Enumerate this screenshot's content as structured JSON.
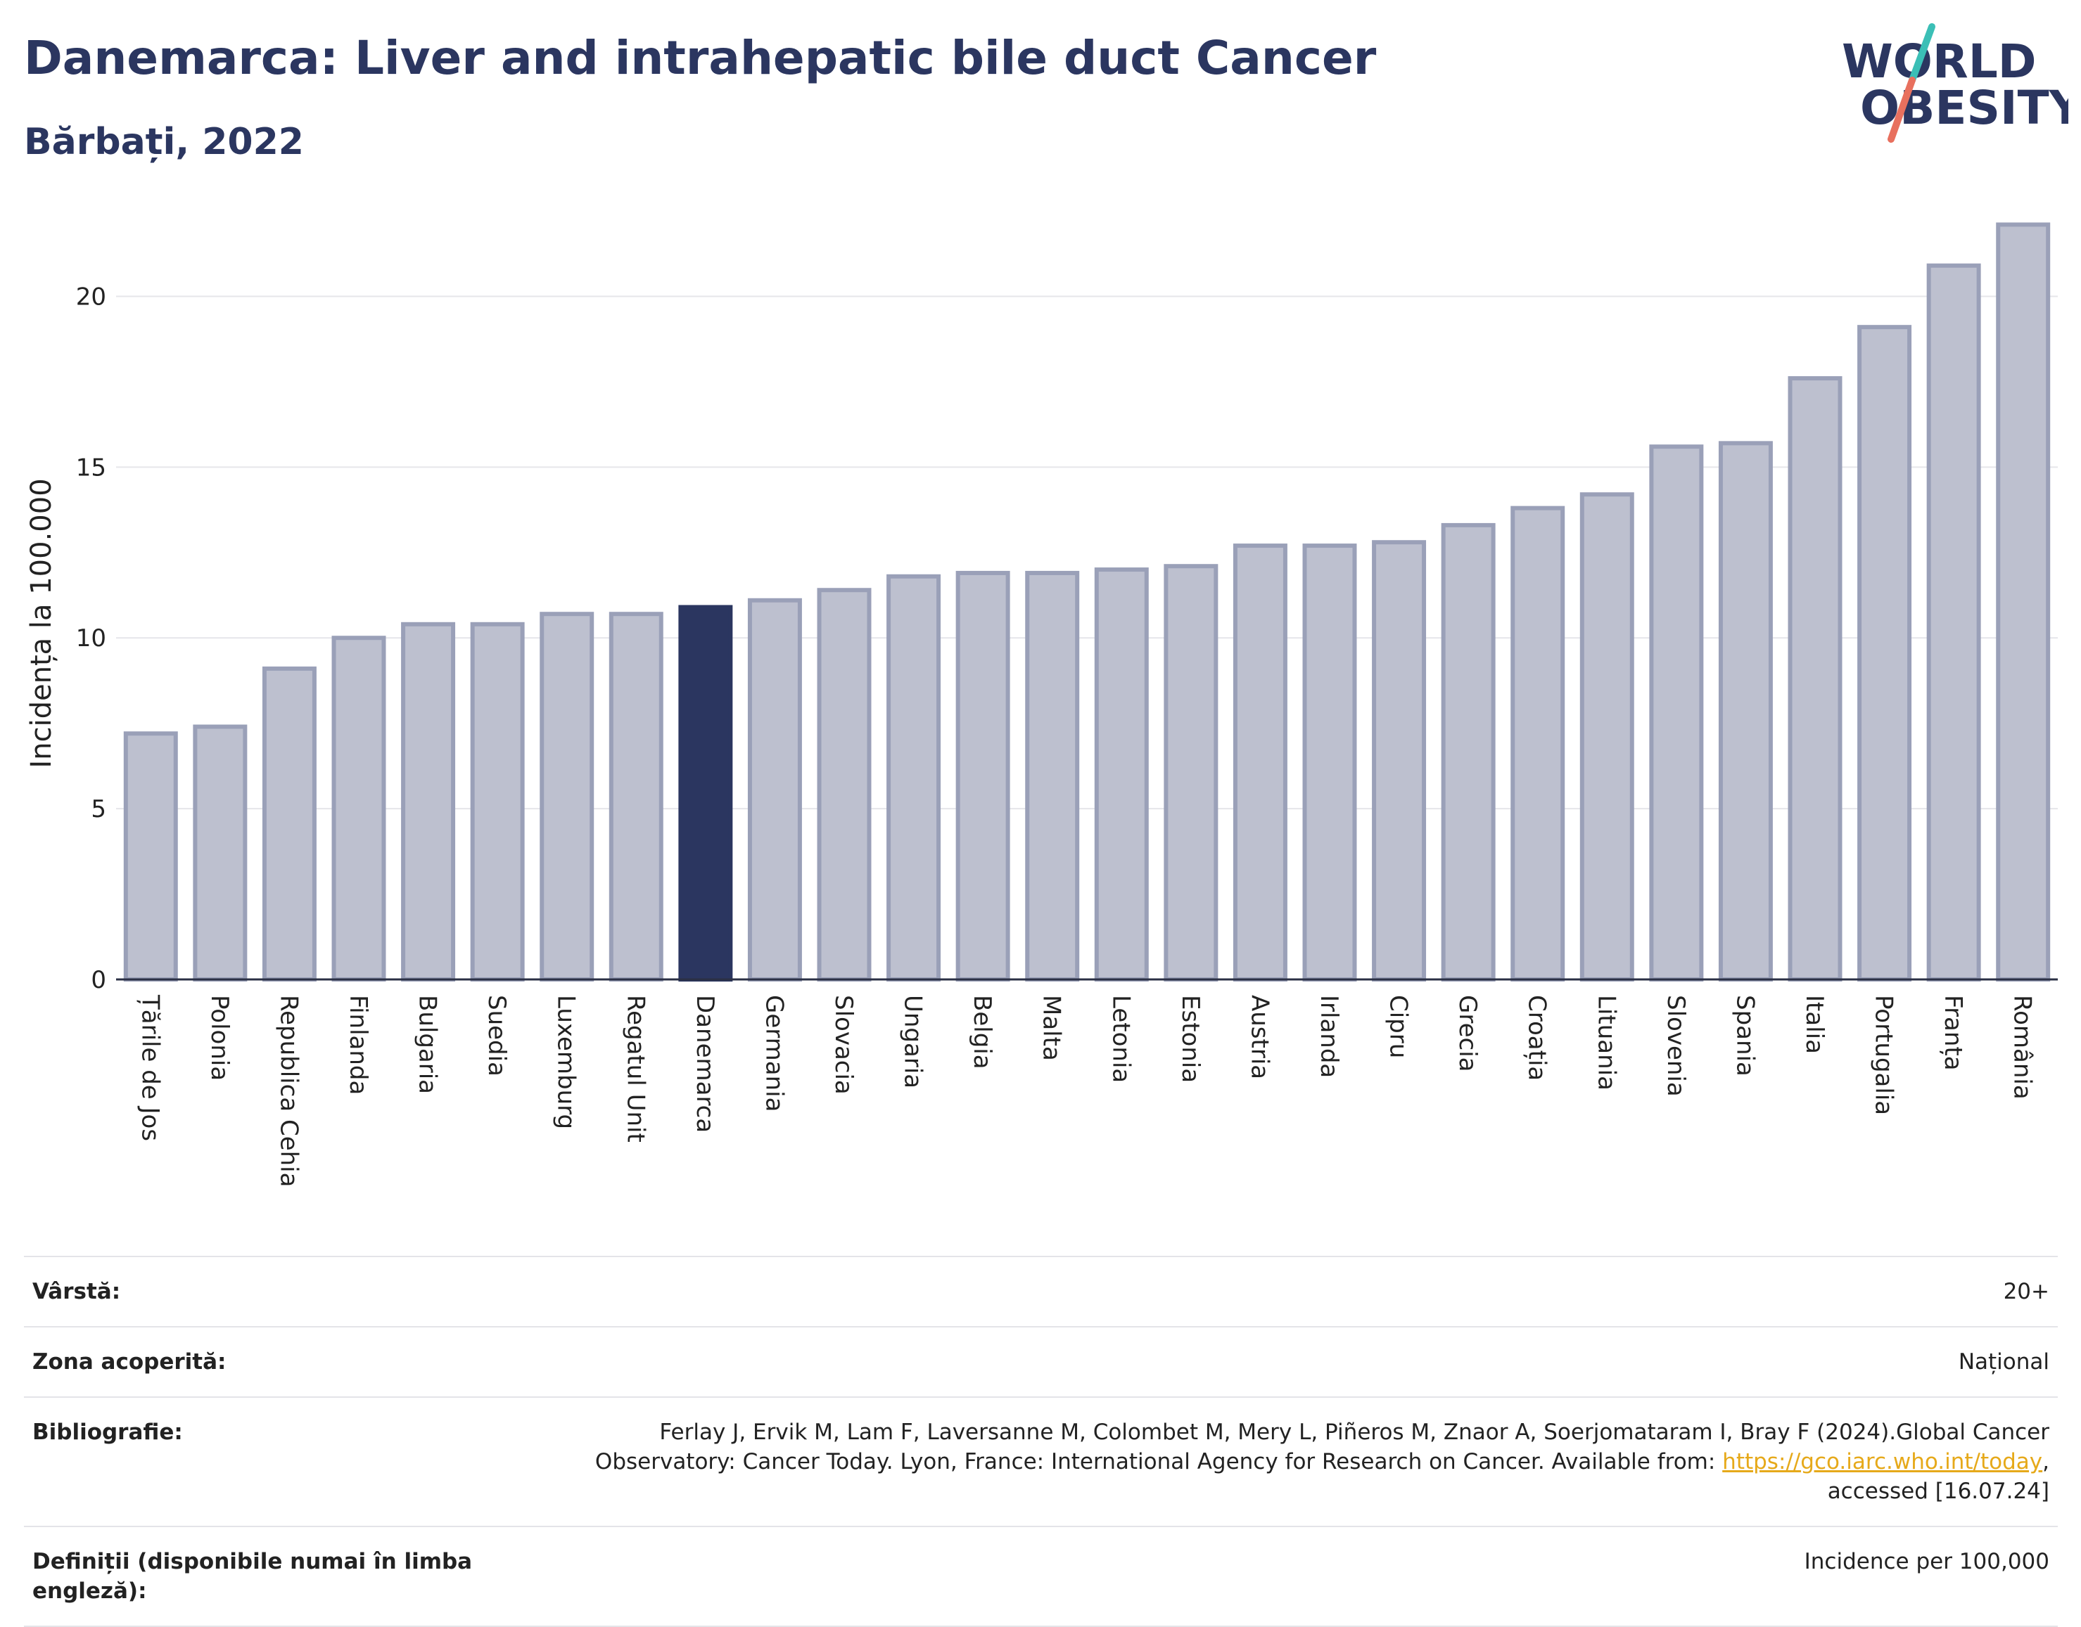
{
  "header": {
    "title": "Danemarca: Liver and intrahepatic bile duct Cancer",
    "subtitle": "Bărbați, 2022"
  },
  "logo": {
    "line1": "WORLD",
    "line2": "OBESITY",
    "colors": {
      "text": "#2b3660",
      "slash_teal": "#3bbfb6",
      "slash_coral": "#e8705e"
    }
  },
  "chart_data": {
    "type": "bar",
    "ylabel": "Incidența la 100.000",
    "ylim": [
      0,
      22.5
    ],
    "yticks": [
      0,
      5,
      10,
      15,
      20
    ],
    "grid": true,
    "highlight_category": "Danemarca",
    "colors": {
      "bar": "#bdc0cf",
      "bar_border": "#9aa0b8",
      "highlight": "#2b3660"
    },
    "categories": [
      "Țările de Jos",
      "Polonia",
      "Republica Cehia",
      "Finlanda",
      "Bulgaria",
      "Suedia",
      "Luxemburg",
      "Regatul Unit",
      "Danemarca",
      "Germania",
      "Slovacia",
      "Ungaria",
      "Belgia",
      "Malta",
      "Letonia",
      "Estonia",
      "Austria",
      "Irlanda",
      "Cipru",
      "Grecia",
      "Croația",
      "Lituania",
      "Slovenia",
      "Spania",
      "Italia",
      "Portugalia",
      "Franța",
      "România"
    ],
    "values": [
      7.2,
      7.4,
      9.1,
      10.0,
      10.4,
      10.4,
      10.7,
      10.7,
      10.9,
      11.1,
      11.4,
      11.8,
      11.9,
      11.9,
      12.0,
      12.1,
      12.7,
      12.7,
      12.8,
      13.3,
      13.8,
      14.2,
      15.6,
      15.7,
      17.6,
      19.1,
      20.9,
      22.1
    ]
  },
  "info": {
    "age": {
      "label": "Vârstă:",
      "value": "20+"
    },
    "coverage": {
      "label": "Zona acoperită:",
      "value": "Național"
    },
    "bibliography": {
      "label": "Bibliografie:",
      "line1": "Ferlay J, Ervik M, Lam F, Laversanne M, Colombet M, Mery L, Piñeros M, Znaor A, Soerjomataram I, Bray F (2024).Global Cancer",
      "line2_pre": "Observatory: Cancer Today. Lyon, France: International Agency for Research on Cancer. Available from: ",
      "link": "https://gco.iarc.who.int/today",
      "line2_post": ",",
      "line3": "accessed [16.07.24]"
    },
    "definitions": {
      "label": "Definiții (disponibile numai în limba engleză):",
      "value": "Incidence per 100,000"
    }
  }
}
